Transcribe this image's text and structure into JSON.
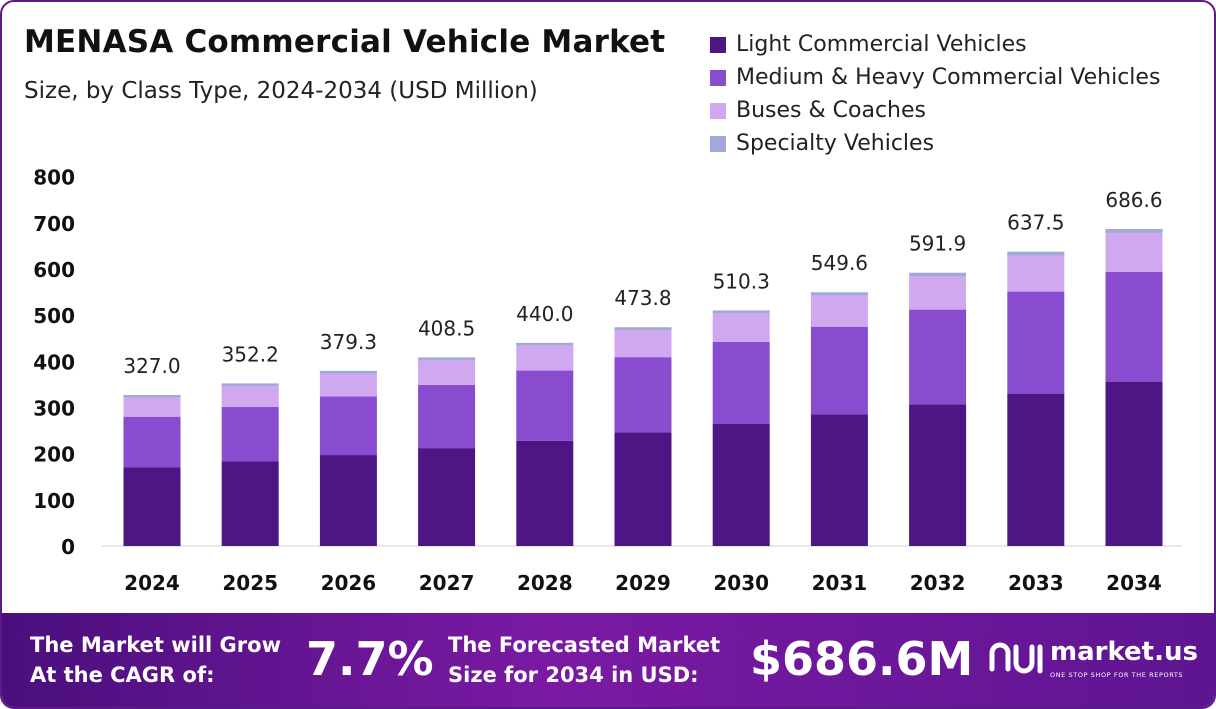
{
  "header": {
    "title": "MENASA Commercial Vehicle Market",
    "subtitle": "Size, by Class Type, 2024-2034 (USD Million)"
  },
  "colors": {
    "light_commercial": "#4e1684",
    "medium_heavy": "#8a4ccf",
    "buses": "#d0a8ef",
    "specialty": "#a3a8d8",
    "footer_bg": "#6a1b9a"
  },
  "chart_data": {
    "type": "bar",
    "stacked": true,
    "categories": [
      "2024",
      "2025",
      "2026",
      "2027",
      "2028",
      "2029",
      "2030",
      "2031",
      "2032",
      "2033",
      "2034"
    ],
    "series": [
      {
        "name": "Light Commercial Vehicles",
        "color": "#4e1684",
        "values": [
          170,
          183,
          197,
          212,
          228,
          246,
          265,
          285,
          307,
          330,
          356
        ]
      },
      {
        "name": "Medium & Heavy Commercial Vehicles",
        "color": "#8a4ccf",
        "values": [
          110,
          118,
          127,
          137,
          152,
          163,
          177,
          190,
          205,
          221,
          238
        ]
      },
      {
        "name": "Buses & Coaches",
        "color": "#d0a8ef",
        "values": [
          41,
          45,
          49,
          53,
          54,
          58,
          61,
          67,
          72,
          78,
          84
        ]
      },
      {
        "name": "Specialty Vehicles",
        "color": "#a3a8d8",
        "values": [
          6,
          6.2,
          6.3,
          6.5,
          6,
          6.8,
          7.3,
          7.6,
          7.9,
          8.5,
          8.6
        ]
      }
    ],
    "totals": [
      "327.0",
      "352.2",
      "379.3",
      "408.5",
      "440.0",
      "473.8",
      "510.3",
      "549.6",
      "591.9",
      "637.5",
      "686.6"
    ],
    "yticks": [
      "0",
      "100",
      "200",
      "300",
      "400",
      "500",
      "600",
      "700",
      "800"
    ],
    "ylim": [
      0,
      800
    ],
    "grid": false,
    "legend_position": "top-right"
  },
  "footer": {
    "cagr_label_line1": "The Market will Grow",
    "cagr_label_line2": "At the CAGR of:",
    "cagr_value": "7.7%",
    "forecast_label_line1": "The Forecasted Market",
    "forecast_label_line2": "Size for 2034 in USD:",
    "forecast_value": "$686.6M",
    "brand_name": "market.us",
    "brand_tagline": "ONE STOP SHOP FOR THE REPORTS",
    "brand_icon": "market-us-logo-icon"
  }
}
